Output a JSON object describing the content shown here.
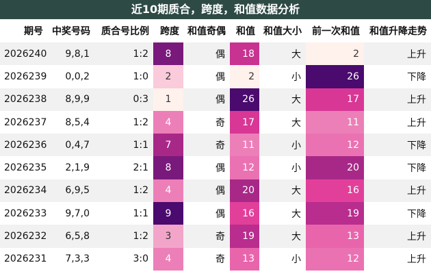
{
  "title": "近10期质合，跨度，和值数据分析",
  "headers": [
    "期号",
    "中奖号码",
    "质合号比例",
    "跨度",
    "和值奇偶",
    "和值",
    "和值大小",
    "前一次和值",
    "和值升降走势"
  ],
  "rows": [
    {
      "issue": "2026240",
      "numbers": "9,8,1",
      "ratio": "1:2",
      "span": "8",
      "parity": "偶",
      "sum": "18",
      "size": "大",
      "prev_sum": "2",
      "trend": "上升"
    },
    {
      "issue": "2026239",
      "numbers": "0,0,2",
      "ratio": "1:0",
      "span": "2",
      "parity": "偶",
      "sum": "2",
      "size": "小",
      "prev_sum": "26",
      "trend": "下降"
    },
    {
      "issue": "2026238",
      "numbers": "8,9,9",
      "ratio": "0:3",
      "span": "1",
      "parity": "偶",
      "sum": "26",
      "size": "大",
      "prev_sum": "17",
      "trend": "上升"
    },
    {
      "issue": "2026237",
      "numbers": "8,5,4",
      "ratio": "1:2",
      "span": "4",
      "parity": "奇",
      "sum": "17",
      "size": "大",
      "prev_sum": "11",
      "trend": "上升"
    },
    {
      "issue": "2026236",
      "numbers": "0,4,7",
      "ratio": "1:1",
      "span": "7",
      "parity": "奇",
      "sum": "11",
      "size": "小",
      "prev_sum": "12",
      "trend": "下降"
    },
    {
      "issue": "2026235",
      "numbers": "2,1,9",
      "ratio": "2:1",
      "span": "8",
      "parity": "偶",
      "sum": "12",
      "size": "小",
      "prev_sum": "20",
      "trend": "下降"
    },
    {
      "issue": "2026234",
      "numbers": "6,9,5",
      "ratio": "1:2",
      "span": "4",
      "parity": "偶",
      "sum": "20",
      "size": "大",
      "prev_sum": "16",
      "trend": "上升"
    },
    {
      "issue": "2026233",
      "numbers": "9,7,0",
      "ratio": "1:1",
      "span": "9",
      "parity": "偶",
      "sum": "16",
      "size": "大",
      "prev_sum": "19",
      "trend": "下降"
    },
    {
      "issue": "2026232",
      "numbers": "6,5,8",
      "ratio": "1:2",
      "span": "3",
      "parity": "奇",
      "sum": "19",
      "size": "大",
      "prev_sum": "13",
      "trend": "上升"
    },
    {
      "issue": "2026231",
      "numbers": "7,3,3",
      "ratio": "3:0",
      "span": "4",
      "parity": "奇",
      "sum": "13",
      "size": "小",
      "prev_sum": "12",
      "trend": "上升"
    }
  ],
  "colors": {
    "title_bg": "#2e4a45",
    "heat_low": "#fff1ec",
    "heat_mid": "#e13a98",
    "heat_high": "#4a0a6e"
  }
}
